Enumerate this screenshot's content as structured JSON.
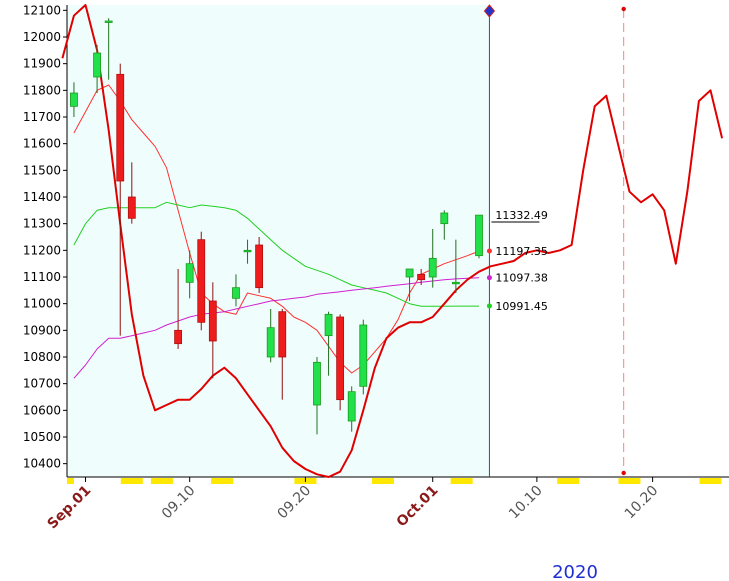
{
  "chart_data": {
    "type": "candlestick",
    "title": "",
    "xlabel": "",
    "ylabel": "",
    "year_label": "2020",
    "ylim": [
      10350,
      12120
    ],
    "y_ticks": [
      10400,
      10500,
      10600,
      10700,
      10800,
      10900,
      11000,
      11100,
      11200,
      11300,
      11400,
      11500,
      11600,
      11700,
      11800,
      11900,
      12000,
      12100
    ],
    "x_tick_labels": [
      {
        "label": "Sep.01",
        "slot": 1,
        "style": "month"
      },
      {
        "label": "09.10",
        "slot": 10,
        "style": "plain"
      },
      {
        "label": "09.20",
        "slot": 20,
        "style": "plain"
      },
      {
        "label": "Oct.01",
        "slot": 31,
        "style": "month"
      },
      {
        "label": "10.10",
        "slot": 40,
        "style": "plain"
      },
      {
        "label": "10.20",
        "slot": 50,
        "style": "plain"
      }
    ],
    "slot_range": [
      -0.6,
      56.6
    ],
    "current_slot": 35.9,
    "marker_slot": 47.5,
    "candles": [
      {
        "x": 0,
        "o": 11740,
        "h": 11830,
        "l": 11700,
        "c": 11790
      },
      {
        "x": 2,
        "o": 11850,
        "h": 11970,
        "l": 11790,
        "c": 11940
      },
      {
        "x": 3,
        "o": 12060,
        "h": 12070,
        "l": 11840,
        "c": 12060
      },
      {
        "x": 4,
        "o": 11860,
        "h": 11900,
        "l": 10880,
        "c": 11460
      },
      {
        "x": 5,
        "o": 11400,
        "h": 11530,
        "l": 11300,
        "c": 11320
      },
      {
        "x": 9,
        "o": 10900,
        "h": 11130,
        "l": 10830,
        "c": 10850
      },
      {
        "x": 10,
        "o": 11080,
        "h": 11200,
        "l": 11020,
        "c": 11150
      },
      {
        "x": 11,
        "o": 11240,
        "h": 11270,
        "l": 10900,
        "c": 10930
      },
      {
        "x": 12,
        "o": 11010,
        "h": 11080,
        "l": 10720,
        "c": 10860
      },
      {
        "x": 14,
        "o": 11020,
        "h": 11110,
        "l": 10990,
        "c": 11060
      },
      {
        "x": 15,
        "o": 11200,
        "h": 11240,
        "l": 11150,
        "c": 11200
      },
      {
        "x": 16,
        "o": 11220,
        "h": 11250,
        "l": 11040,
        "c": 11060
      },
      {
        "x": 17,
        "o": 10800,
        "h": 10980,
        "l": 10780,
        "c": 10910
      },
      {
        "x": 18,
        "o": 10970,
        "h": 10980,
        "l": 10640,
        "c": 10800
      },
      {
        "x": 21,
        "o": 10620,
        "h": 10800,
        "l": 10510,
        "c": 10780
      },
      {
        "x": 22,
        "o": 10880,
        "h": 10970,
        "l": 10730,
        "c": 10960
      },
      {
        "x": 23,
        "o": 10950,
        "h": 10960,
        "l": 10600,
        "c": 10640
      },
      {
        "x": 24,
        "o": 10560,
        "h": 10690,
        "l": 10520,
        "c": 10670
      },
      {
        "x": 25,
        "o": 10690,
        "h": 10940,
        "l": 10660,
        "c": 10920
      },
      {
        "x": 29,
        "o": 11100,
        "h": 11130,
        "l": 11010,
        "c": 11130
      },
      {
        "x": 30,
        "o": 11110,
        "h": 11130,
        "l": 11070,
        "c": 11090
      },
      {
        "x": 31,
        "o": 11100,
        "h": 11280,
        "l": 11060,
        "c": 11170
      },
      {
        "x": 32,
        "o": 11300,
        "h": 11350,
        "l": 11240,
        "c": 11340
      },
      {
        "x": 33,
        "o": 11080,
        "h": 11240,
        "l": 11040,
        "c": 11080
      },
      {
        "x": 35,
        "o": 11180,
        "h": 11330,
        "l": 11170,
        "c": 11332
      }
    ],
    "series": [
      {
        "color": "#ff3030",
        "width": 1,
        "points": [
          [
            0,
            11640
          ],
          [
            1,
            11720
          ],
          [
            2,
            11800
          ],
          [
            3,
            11820
          ],
          [
            4,
            11760
          ],
          [
            5,
            11690
          ],
          [
            6,
            11640
          ],
          [
            7,
            11590
          ],
          [
            8,
            11510
          ],
          [
            9,
            11350
          ],
          [
            10,
            11190
          ],
          [
            11,
            11040
          ],
          [
            12,
            11000
          ],
          [
            13,
            10970
          ],
          [
            14,
            10960
          ],
          [
            15,
            11040
          ],
          [
            16,
            11030
          ],
          [
            17,
            11020
          ],
          [
            18,
            10990
          ],
          [
            19,
            10950
          ],
          [
            20,
            10930
          ],
          [
            21,
            10900
          ],
          [
            22,
            10840
          ],
          [
            23,
            10780
          ],
          [
            24,
            10740
          ],
          [
            25,
            10770
          ],
          [
            26,
            10820
          ],
          [
            27,
            10870
          ],
          [
            28,
            10940
          ],
          [
            29,
            11040
          ],
          [
            30,
            11110
          ],
          [
            31,
            11130
          ],
          [
            32,
            11150
          ],
          [
            33,
            11165
          ],
          [
            34,
            11180
          ],
          [
            35,
            11197
          ]
        ]
      },
      {
        "color": "#20d020",
        "width": 1,
        "points": [
          [
            0,
            11220
          ],
          [
            1,
            11300
          ],
          [
            2,
            11350
          ],
          [
            3,
            11360
          ],
          [
            4,
            11360
          ],
          [
            5,
            11360
          ],
          [
            6,
            11360
          ],
          [
            7,
            11360
          ],
          [
            8,
            11380
          ],
          [
            9,
            11370
          ],
          [
            10,
            11360
          ],
          [
            11,
            11370
          ],
          [
            12,
            11365
          ],
          [
            13,
            11360
          ],
          [
            14,
            11350
          ],
          [
            15,
            11320
          ],
          [
            16,
            11280
          ],
          [
            17,
            11240
          ],
          [
            18,
            11200
          ],
          [
            19,
            11170
          ],
          [
            20,
            11140
          ],
          [
            21,
            11125
          ],
          [
            22,
            11110
          ],
          [
            23,
            11090
          ],
          [
            24,
            11070
          ],
          [
            25,
            11060
          ],
          [
            26,
            11050
          ],
          [
            27,
            11040
          ],
          [
            28,
            11020
          ],
          [
            29,
            11000
          ],
          [
            30,
            10990
          ],
          [
            31,
            10990
          ],
          [
            32,
            10990
          ],
          [
            33,
            10991
          ],
          [
            34,
            10991
          ],
          [
            35,
            10991
          ]
        ]
      },
      {
        "color": "#d020d0",
        "width": 1,
        "points": [
          [
            0,
            10720
          ],
          [
            1,
            10770
          ],
          [
            2,
            10830
          ],
          [
            3,
            10870
          ],
          [
            4,
            10870
          ],
          [
            5,
            10880
          ],
          [
            6,
            10890
          ],
          [
            7,
            10900
          ],
          [
            8,
            10920
          ],
          [
            9,
            10935
          ],
          [
            10,
            10950
          ],
          [
            11,
            10960
          ],
          [
            12,
            10965
          ],
          [
            13,
            10970
          ],
          [
            14,
            10980
          ],
          [
            15,
            10990
          ],
          [
            16,
            11000
          ],
          [
            17,
            11010
          ],
          [
            18,
            11015
          ],
          [
            19,
            11020
          ],
          [
            20,
            11025
          ],
          [
            21,
            11035
          ],
          [
            22,
            11040
          ],
          [
            23,
            11045
          ],
          [
            24,
            11050
          ],
          [
            25,
            11055
          ],
          [
            26,
            11060
          ],
          [
            27,
            11065
          ],
          [
            28,
            11070
          ],
          [
            29,
            11075
          ],
          [
            30,
            11080
          ],
          [
            31,
            11085
          ],
          [
            32,
            11090
          ],
          [
            33,
            11093
          ],
          [
            34,
            11095
          ],
          [
            35,
            11097
          ]
        ]
      },
      {
        "color": "#e00000",
        "width": 2,
        "points": [
          [
            -1,
            11920
          ],
          [
            0,
            12080
          ],
          [
            1,
            12120
          ],
          [
            2,
            11950
          ],
          [
            3,
            11650
          ],
          [
            4,
            11300
          ],
          [
            5,
            10960
          ],
          [
            6,
            10730
          ],
          [
            7,
            10600
          ],
          [
            8,
            10620
          ],
          [
            9,
            10640
          ],
          [
            10,
            10640
          ],
          [
            11,
            10680
          ],
          [
            12,
            10730
          ],
          [
            13,
            10760
          ],
          [
            14,
            10720
          ],
          [
            15,
            10660
          ],
          [
            16,
            10600
          ],
          [
            17,
            10540
          ],
          [
            18,
            10460
          ],
          [
            19,
            10410
          ],
          [
            20,
            10380
          ],
          [
            21,
            10360
          ],
          [
            22,
            10350
          ],
          [
            23,
            10370
          ],
          [
            24,
            10450
          ],
          [
            25,
            10600
          ],
          [
            26,
            10760
          ],
          [
            27,
            10870
          ],
          [
            28,
            10910
          ],
          [
            29,
            10930
          ],
          [
            30,
            10930
          ],
          [
            31,
            10950
          ],
          [
            32,
            11000
          ],
          [
            33,
            11050
          ],
          [
            34,
            11090
          ],
          [
            35,
            11120
          ],
          [
            36,
            11140
          ],
          [
            37,
            11150
          ],
          [
            38,
            11160
          ],
          [
            39,
            11190
          ],
          [
            40,
            11200
          ],
          [
            41,
            11190
          ],
          [
            42,
            11200
          ],
          [
            43,
            11220
          ],
          [
            44,
            11500
          ],
          [
            45,
            11740
          ],
          [
            46,
            11780
          ],
          [
            47,
            11600
          ],
          [
            48,
            11420
          ],
          [
            49,
            11380
          ],
          [
            50,
            11410
          ],
          [
            51,
            11350
          ],
          [
            52,
            11150
          ],
          [
            53,
            11420
          ],
          [
            54,
            11760
          ],
          [
            55,
            11800
          ],
          [
            56,
            11620
          ]
        ]
      }
    ],
    "value_labels": [
      {
        "text": "11332.49",
        "y": 11332.49,
        "underline": true
      },
      {
        "text": "11197.35",
        "y": 11197.35,
        "color": "#ff3030"
      },
      {
        "text": "11097.38",
        "y": 11097.38,
        "color": "#d020d0"
      },
      {
        "text": "10991.45",
        "y": 10991.45,
        "color": "#20d020"
      }
    ],
    "colors": {
      "up": "#22e04a",
      "down": "#ee1c1c",
      "history_bg": "#f0fdfd",
      "current_line": "#1b5e7b",
      "marker_line": "#ff8080",
      "axis_marker": "#ffe800"
    }
  }
}
